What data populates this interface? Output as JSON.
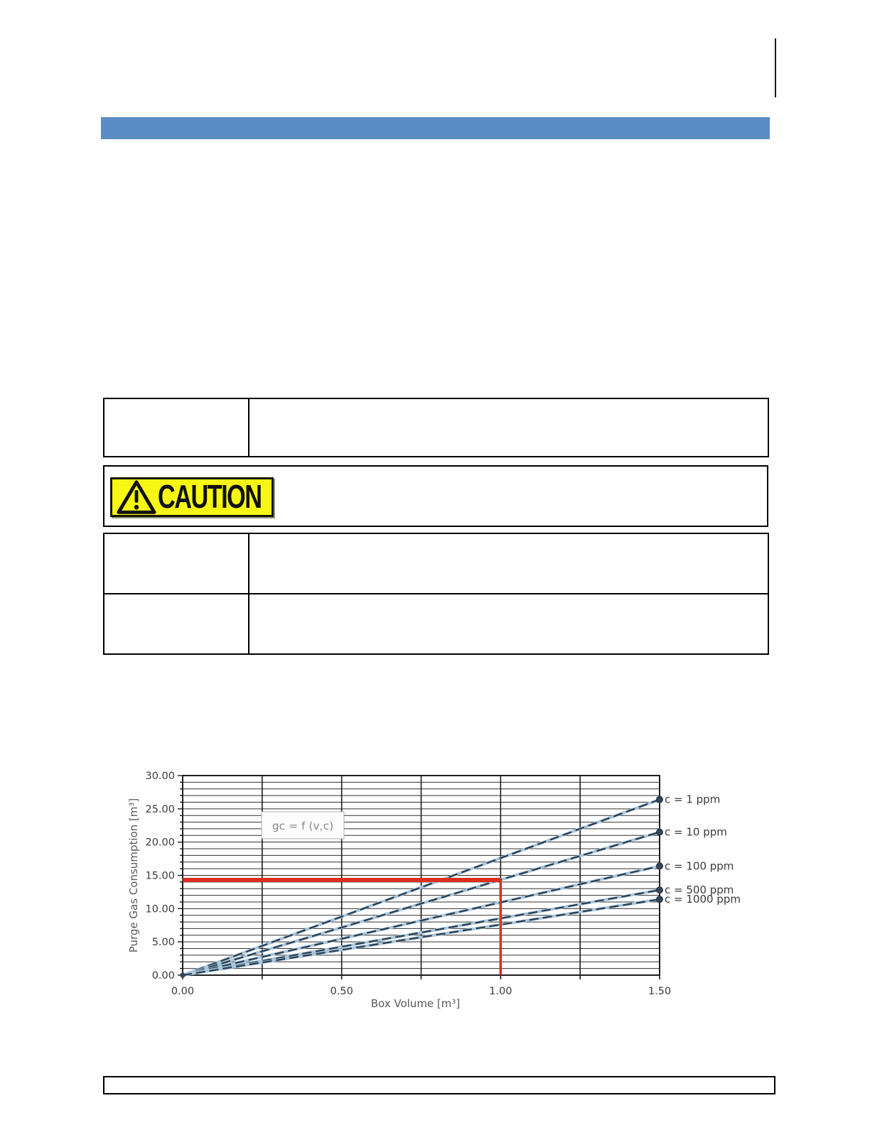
{
  "page": {
    "caution_label": "CAUTION"
  },
  "colors": {
    "section_bar": "#5b8cc4",
    "caution_yellow": "#f7f714",
    "guide_red": "#dc2e1e",
    "series_dark": "#2c3e50",
    "series_halo": "#a9c7dd",
    "marker_fill": "#36465a",
    "grid_minor": "#303030",
    "grid_major": "#1c1c1c",
    "tick_text": "#3b3b3b",
    "axis_title_text": "#5a5a5a",
    "annotation_text": "#888888"
  },
  "tables": {
    "top": {
      "rows": [
        {
          "label": "",
          "value": ""
        }
      ]
    },
    "caution_row": {
      "value": ""
    },
    "bottom": {
      "rows": [
        {
          "label": "",
          "value": ""
        },
        {
          "label": "",
          "value": ""
        }
      ]
    }
  },
  "footer": {
    "text": ""
  },
  "chart_data": {
    "type": "line",
    "title": "",
    "xlabel": "Box Volume [m³]",
    "ylabel": "Purge Gas Consumption [m³]",
    "xlim": [
      0,
      1.5
    ],
    "ylim": [
      0,
      30
    ],
    "x_tick_values": [
      0,
      0.5,
      1.0,
      1.5
    ],
    "x_tick_labels": [
      "0.00",
      "0.50",
      "1.00",
      "1.50"
    ],
    "y_tick_values": [
      0,
      5,
      10,
      15,
      20,
      25,
      30
    ],
    "y_tick_labels": [
      "0.00",
      "5.00",
      "10.00",
      "15.00",
      "20.00",
      "25.00",
      "30.00"
    ],
    "x_minor_step": 0.25,
    "y_minor_step": 1,
    "grid": "on",
    "legend_position": "right",
    "annotation": "gc = f (v,c)",
    "series": [
      {
        "name": "c = 1 ppm",
        "x": [
          0,
          1.5
        ],
        "y": [
          0,
          26.4
        ]
      },
      {
        "name": "c = 10 ppm",
        "x": [
          0,
          1.5
        ],
        "y": [
          0,
          21.5
        ]
      },
      {
        "name": "c = 100 ppm",
        "x": [
          0,
          1.5
        ],
        "y": [
          0,
          16.4
        ]
      },
      {
        "name": "c = 500 ppm",
        "x": [
          0,
          1.5
        ],
        "y": [
          0,
          12.8
        ]
      },
      {
        "name": "c = 1000 ppm",
        "x": [
          0,
          1.5
        ],
        "y": [
          0,
          11.4
        ]
      }
    ],
    "reading_guide": {
      "x": 1.0,
      "y": 14.3
    }
  }
}
